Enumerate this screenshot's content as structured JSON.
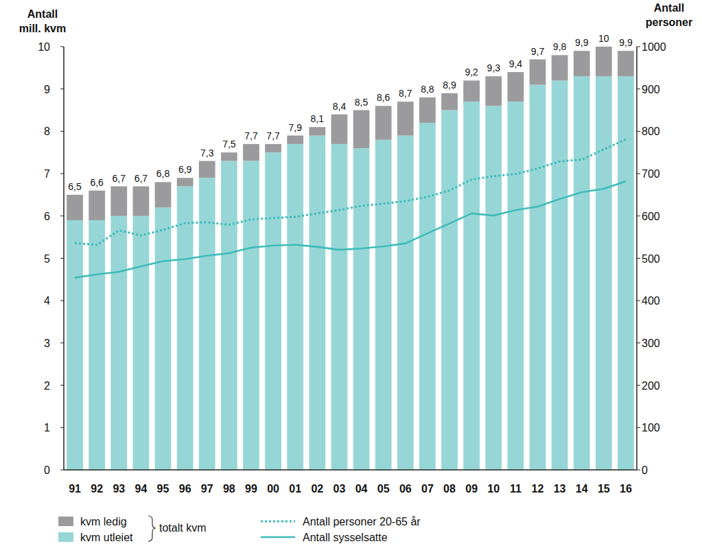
{
  "chart_data": {
    "type": "bar",
    "stacked": true,
    "grid": false,
    "legend": "bottom",
    "categories": [
      "91",
      "92",
      "93",
      "94",
      "95",
      "96",
      "97",
      "98",
      "99",
      "00",
      "01",
      "02",
      "03",
      "04",
      "05",
      "06",
      "07",
      "08",
      "09",
      "10",
      "11",
      "12",
      "13",
      "14",
      "15",
      "16"
    ],
    "series": [
      {
        "name": "kvm utleiet",
        "type": "bar",
        "color": "#97d6d6",
        "values": [
          5.9,
          5.9,
          6.0,
          6.0,
          6.2,
          6.7,
          6.9,
          7.3,
          7.3,
          7.5,
          7.7,
          7.9,
          7.7,
          7.6,
          7.8,
          7.9,
          8.2,
          8.5,
          8.7,
          8.6,
          8.7,
          9.1,
          9.2,
          9.3,
          9.3,
          9.3
        ]
      },
      {
        "name": "kvm ledig",
        "type": "bar",
        "color": "#9b9b9d",
        "values": [
          0.6,
          0.7,
          0.7,
          0.7,
          0.6,
          0.2,
          0.4,
          0.2,
          0.4,
          0.2,
          0.2,
          0.2,
          0.7,
          0.9,
          0.8,
          0.8,
          0.6,
          0.4,
          0.5,
          0.7,
          0.7,
          0.6,
          0.6,
          0.6,
          0.7,
          0.6
        ]
      },
      {
        "name": "Antall personer 20-65 år",
        "type": "line",
        "line_style": "dotted",
        "axis": "y2",
        "color": "#3dbbb9",
        "values": [
          536,
          532,
          566,
          554,
          567,
          583,
          585,
          579,
          592,
          595,
          598,
          606,
          614,
          624,
          629,
          635,
          645,
          660,
          686,
          694,
          699,
          712,
          729,
          733,
          757,
          781
        ]
      },
      {
        "name": "Antall sysselsatte",
        "type": "line",
        "line_style": "solid",
        "axis": "y2",
        "color": "#3dbbb9",
        "values": [
          454,
          462,
          468,
          481,
          493,
          498,
          506,
          512,
          525,
          530,
          532,
          527,
          520,
          523,
          528,
          535,
          559,
          582,
          606,
          601,
          614,
          622,
          640,
          656,
          664,
          682
        ]
      }
    ],
    "totals": [
      6.5,
      6.6,
      6.7,
      6.7,
      6.8,
      6.9,
      7.3,
      7.5,
      7.7,
      7.7,
      7.9,
      8.1,
      8.4,
      8.5,
      8.6,
      8.7,
      8.8,
      8.9,
      9.2,
      9.3,
      9.4,
      9.7,
      9.8,
      9.9,
      10,
      9.9
    ],
    "total_labels": [
      "6,5",
      "6,6",
      "6,7",
      "6,7",
      "6,8",
      "6,9",
      "7,3",
      "7,5",
      "7,7",
      "7,7",
      "7,9",
      "8,1",
      "8,4",
      "8,5",
      "8,6",
      "8,7",
      "8,8",
      "8,9",
      "9,2",
      "9,3",
      "9,4",
      "9,7",
      "9,8",
      "9,9",
      "10",
      "9,9"
    ],
    "legend_group": "totalt kvm",
    "y_label": [
      "Antall",
      "mill. kvm"
    ],
    "y2_label": [
      "Antall",
      "personer"
    ],
    "ylim": [
      0,
      10
    ],
    "yticks": [
      0,
      1,
      2,
      3,
      4,
      5,
      6,
      7,
      8,
      9,
      10
    ],
    "y2lim": [
      0,
      1000
    ],
    "y2ticks": [
      0,
      100,
      200,
      300,
      400,
      500,
      600,
      700,
      800,
      900,
      1000
    ]
  }
}
